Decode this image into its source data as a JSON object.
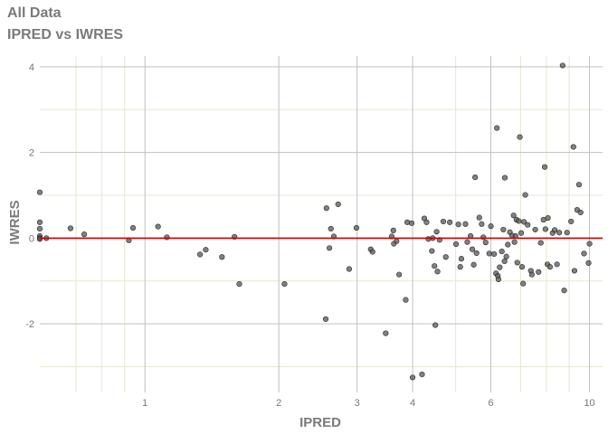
{
  "page": {
    "title": "All Data",
    "subtitle": "IPRED vs IWRES"
  },
  "chart_data": {
    "type": "scatter",
    "title": "All Data",
    "subtitle": "IPRED vs IWRES",
    "xlabel": "IPRED",
    "ylabel": "IWRES",
    "x_scale": "log10",
    "xlim": [
      0.58,
      10.7
    ],
    "ylim": [
      -3.6,
      4.25
    ],
    "x_major_ticks": [
      1,
      2,
      3,
      4,
      6,
      10
    ],
    "x_tick_labels": [
      "1",
      "2",
      "3",
      "4",
      "6",
      "10"
    ],
    "x_minor_lines": [
      0.7,
      0.8,
      0.9,
      5,
      7,
      8,
      9
    ],
    "y_major_ticks": [
      -2,
      0,
      2,
      4
    ],
    "y_tick_labels": [
      "-2",
      "0",
      "2",
      "4"
    ],
    "y_minor_lines": [
      -3,
      -1,
      1,
      3
    ],
    "reference_line": {
      "y": 0,
      "color": "#cc0000"
    },
    "grid": true,
    "colors": {
      "points": "#555555",
      "grid_major": "#c0c0c0",
      "grid_minor": "#e6e6d2",
      "reference": "#cc0000",
      "text": "#7a7a7a"
    },
    "points": [
      [
        0.58,
        1.07
      ],
      [
        0.58,
        0.37
      ],
      [
        0.58,
        0.22
      ],
      [
        0.58,
        0.05
      ],
      [
        0.58,
        0.0
      ],
      [
        0.58,
        -0.02
      ],
      [
        0.6,
        0.0
      ],
      [
        0.68,
        0.23
      ],
      [
        0.73,
        0.09
      ],
      [
        0.92,
        -0.05
      ],
      [
        0.94,
        0.24
      ],
      [
        1.07,
        0.27
      ],
      [
        1.12,
        0.02
      ],
      [
        1.33,
        -0.38
      ],
      [
        1.37,
        -0.27
      ],
      [
        1.49,
        -0.44
      ],
      [
        1.59,
        0.03
      ],
      [
        1.63,
        -1.07
      ],
      [
        2.06,
        -1.07
      ],
      [
        2.55,
        -1.89
      ],
      [
        2.56,
        0.7
      ],
      [
        2.6,
        -0.23
      ],
      [
        2.62,
        0.22
      ],
      [
        2.66,
        0.04
      ],
      [
        2.72,
        0.79
      ],
      [
        2.88,
        -0.72
      ],
      [
        2.99,
        0.24
      ],
      [
        3.22,
        -0.26
      ],
      [
        3.25,
        -0.32
      ],
      [
        3.48,
        -2.22
      ],
      [
        3.59,
        0.04
      ],
      [
        3.62,
        0.18
      ],
      [
        3.63,
        -0.13
      ],
      [
        3.68,
        -0.07
      ],
      [
        3.73,
        -0.85
      ],
      [
        3.86,
        -1.44
      ],
      [
        3.89,
        0.37
      ],
      [
        3.98,
        0.35
      ],
      [
        4.0,
        -3.25
      ],
      [
        4.2,
        -3.18
      ],
      [
        4.25,
        0.46
      ],
      [
        4.3,
        0.37
      ],
      [
        4.34,
        -0.02
      ],
      [
        4.42,
        -0.3
      ],
      [
        4.44,
        0.0
      ],
      [
        4.48,
        -0.65
      ],
      [
        4.5,
        -2.03
      ],
      [
        4.53,
        0.15
      ],
      [
        4.55,
        -0.78
      ],
      [
        4.6,
        -0.04
      ],
      [
        4.69,
        0.39
      ],
      [
        4.75,
        -0.44
      ],
      [
        4.85,
        0.37
      ],
      [
        5.01,
        -0.14
      ],
      [
        5.07,
        0.32
      ],
      [
        5.12,
        -0.67
      ],
      [
        5.15,
        -0.48
      ],
      [
        5.26,
        0.33
      ],
      [
        5.31,
        -0.09
      ],
      [
        5.4,
        0.05
      ],
      [
        5.45,
        -0.26
      ],
      [
        5.49,
        -0.62
      ],
      [
        5.53,
        1.42
      ],
      [
        5.57,
        -0.35
      ],
      [
        5.65,
        0.48
      ],
      [
        5.72,
        0.33
      ],
      [
        5.77,
        0.02
      ],
      [
        5.84,
        -0.1
      ],
      [
        5.95,
        -0.36
      ],
      [
        6.0,
        0.28
      ],
      [
        6.1,
        -0.37
      ],
      [
        6.16,
        -0.82
      ],
      [
        6.19,
        2.57
      ],
      [
        6.22,
        -0.88
      ],
      [
        6.24,
        -0.96
      ],
      [
        6.28,
        -0.68
      ],
      [
        6.35,
        -0.31
      ],
      [
        6.4,
        0.2
      ],
      [
        6.44,
        -0.54
      ],
      [
        6.45,
        1.41
      ],
      [
        6.5,
        -0.43
      ],
      [
        6.55,
        -0.15
      ],
      [
        6.62,
        0.14
      ],
      [
        6.7,
        0.06
      ],
      [
        6.75,
        0.53
      ],
      [
        6.78,
        -0.09
      ],
      [
        6.82,
        0.05
      ],
      [
        6.85,
        0.43
      ],
      [
        6.88,
        -0.57
      ],
      [
        6.93,
        0.4
      ],
      [
        6.97,
        2.36
      ],
      [
        7.02,
        0.12
      ],
      [
        7.05,
        -0.67
      ],
      [
        7.09,
        -1.06
      ],
      [
        7.12,
        0.38
      ],
      [
        7.17,
        1.01
      ],
      [
        7.26,
        0.31
      ],
      [
        7.38,
        -0.76
      ],
      [
        7.42,
        -0.85
      ],
      [
        7.55,
        0.2
      ],
      [
        7.68,
        -0.79
      ],
      [
        7.77,
        -0.11
      ],
      [
        7.88,
        0.43
      ],
      [
        7.93,
        1.66
      ],
      [
        7.96,
        0.21
      ],
      [
        8.04,
        -0.61
      ],
      [
        8.06,
        0.47
      ],
      [
        8.15,
        -0.67
      ],
      [
        8.26,
        0.12
      ],
      [
        8.35,
        0.19
      ],
      [
        8.45,
        -0.61
      ],
      [
        8.55,
        0.13
      ],
      [
        8.7,
        4.03
      ],
      [
        8.77,
        -1.22
      ],
      [
        8.9,
        0.13
      ],
      [
        9.09,
        0.39
      ],
      [
        9.2,
        2.13
      ],
      [
        9.25,
        -0.76
      ],
      [
        9.38,
        0.66
      ],
      [
        9.47,
        1.25
      ],
      [
        9.55,
        0.6
      ],
      [
        9.72,
        -0.36
      ],
      [
        9.95,
        -0.58
      ],
      [
        10.0,
        -0.13
      ]
    ]
  }
}
